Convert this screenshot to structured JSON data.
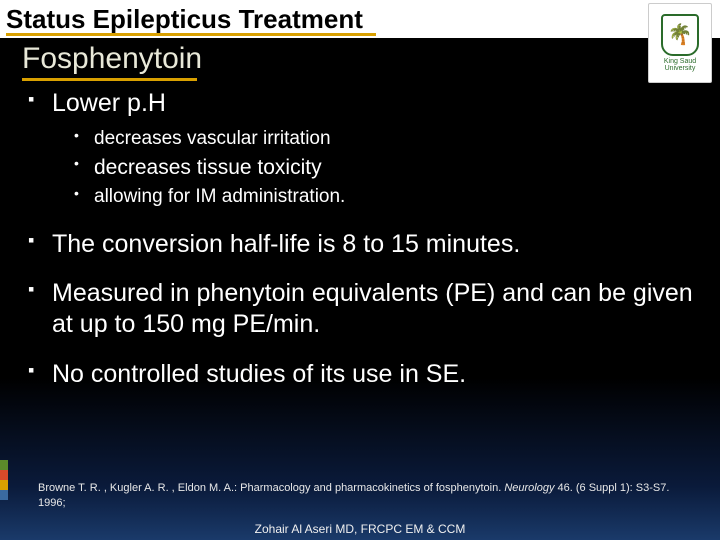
{
  "title": "Status Epilepticus Treatment",
  "subtitle": "Fosphenytoin",
  "logo": {
    "label": "King Saud University",
    "glyph": "🌴"
  },
  "accent_color": "#d9a000",
  "text_color": "#ffffff",
  "background_gradient": [
    "#000000",
    "#1a3a6a"
  ],
  "stripes": [
    "#5b8a2a",
    "#d94a2a",
    "#d9a000",
    "#3a6aa0"
  ],
  "bullets": [
    {
      "text": "Lower p.H",
      "children": [
        {
          "text": "decreases vascular irritation",
          "cls": "smallA"
        },
        {
          "text": "decreases tissue toxicity",
          "cls": "medB"
        },
        {
          "text": "allowing for IM administration.",
          "cls": "smallC"
        }
      ]
    },
    {
      "text": "The conversion half-life is 8 to 15 minutes."
    },
    {
      "text": "Measured in phenytoin equivalents (PE) and can be given at up to 150 mg PE/min."
    },
    {
      "text": "No controlled studies of its use in SE."
    }
  ],
  "citation": {
    "authors": "Browne T. R. , Kugler A. R. , Eldon M. A.: ",
    "title": "Pharmacology and pharmacokinetics of fosphenytoin. ",
    "journal": "Neurology",
    "rest": " 46. (6 Suppl 1): S3-S7. 1996;"
  },
  "footer": "Zohair Al Aseri MD, FRCPC EM & CCM"
}
